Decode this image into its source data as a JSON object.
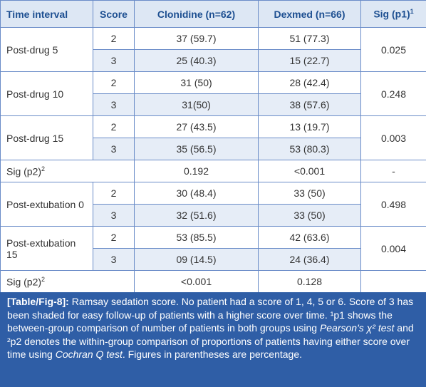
{
  "table": {
    "header": [
      "Time interval",
      "Score",
      "Clonidine (n=62)",
      "Dexmed (n=66)",
      {
        "text": "Sig (p1)",
        "sup": "1"
      }
    ],
    "groups": [
      {
        "label": "Post-drug 5",
        "rows": [
          {
            "score": "2",
            "clonidine": "37 (59.7)",
            "dexmed": "51 (77.3)"
          },
          {
            "score": "3",
            "clonidine": "25 (40.3)",
            "dexmed": "15 (22.7)"
          }
        ],
        "sig": "0.025"
      },
      {
        "label": "Post-drug 10",
        "rows": [
          {
            "score": "2",
            "clonidine": "31 (50)",
            "dexmed": "28 (42.4)"
          },
          {
            "score": "3",
            "clonidine": "31(50)",
            "dexmed": "38 (57.6)"
          }
        ],
        "sig": "0.248"
      },
      {
        "label": "Post-drug 15",
        "rows": [
          {
            "score": "2",
            "clonidine": "27 (43.5)",
            "dexmed": "13 (19.7)"
          },
          {
            "score": "3",
            "clonidine": "35 (56.5)",
            "dexmed": "53 (80.3)"
          }
        ],
        "sig": "0.003"
      },
      {
        "sigrow": true,
        "label": "Sig (p2)",
        "sup": "2",
        "clonidine": "0.192",
        "dexmed": "<0.001",
        "sig": "-"
      },
      {
        "label": "Post-extubation 0",
        "rows": [
          {
            "score": "2",
            "clonidine": "30 (48.4)",
            "dexmed": "33 (50)"
          },
          {
            "score": "3",
            "clonidine": "32 (51.6)",
            "dexmed": "33 (50)"
          }
        ],
        "sig": "0.498"
      },
      {
        "label": "Post-extubation 15",
        "rows": [
          {
            "score": "2",
            "clonidine": "53 (85.5)",
            "dexmed": "42 (63.6)"
          },
          {
            "score": "3",
            "clonidine": "09 (14.5)",
            "dexmed": "24 (36.4)"
          }
        ],
        "sig": "0.004"
      },
      {
        "sigrow": true,
        "label": "Sig (p2)",
        "sup": "2",
        "clonidine": "<0.001",
        "dexmed": "0.128"
      }
    ]
  },
  "caption": [
    {
      "style": "bold",
      "text": "[Table/Fig-8]:"
    },
    {
      "style": "normal",
      "text": " Ramsay sedation score. No patient had a score of 1, 4, 5 or 6. Score of 3 has been shaded for easy follow-up of patients with a higher score over time. ¹p1 shows the between-group comparison of number of patients in both groups using "
    },
    {
      "style": "italic",
      "text": "Pearson's χ² test"
    },
    {
      "style": "normal",
      "text": " and ²p2 denotes the within-group comparison of proportions of patients having either score over time using "
    },
    {
      "style": "italic",
      "text": "Cochran Q test"
    },
    {
      "style": "normal",
      "text": ". Figures in parentheses are percentage."
    }
  ]
}
